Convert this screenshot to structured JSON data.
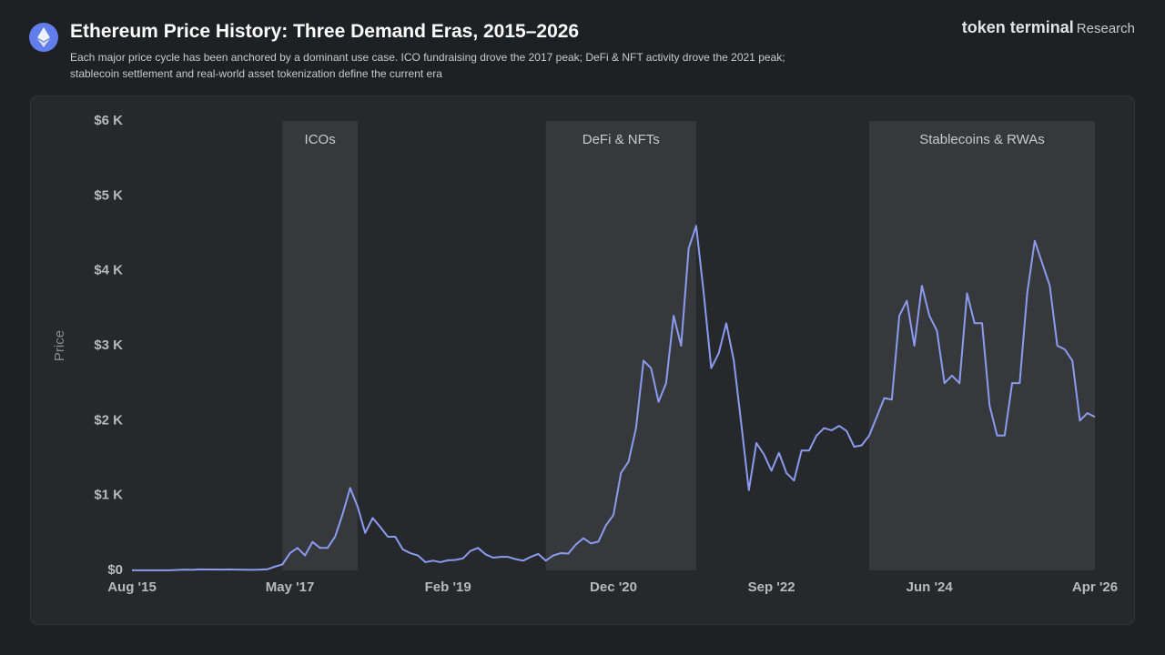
{
  "chart_data": {
    "type": "line",
    "title": "Ethereum Price History: Three Demand Eras, 2015–2026",
    "subtitle": "Each major price cycle has been anchored by a dominant use case. ICO fundraising drove the 2017 peak; DeFi & NFT activity drove the 2021 peak; stablecoin settlement and real-world asset tokenization define the current era",
    "brand": "token terminal",
    "brand_suffix": "Research",
    "y_label": "Price",
    "color": "#8b9cf0",
    "grid": false,
    "x": [
      "2015-08",
      "2015-09",
      "2015-10",
      "2015-11",
      "2015-12",
      "2016-01",
      "2016-02",
      "2016-03",
      "2016-04",
      "2016-05",
      "2016-06",
      "2016-07",
      "2016-08",
      "2016-09",
      "2016-10",
      "2016-11",
      "2016-12",
      "2017-01",
      "2017-02",
      "2017-03",
      "2017-04",
      "2017-05",
      "2017-06",
      "2017-07",
      "2017-08",
      "2017-09",
      "2017-10",
      "2017-11",
      "2017-12",
      "2018-01",
      "2018-02",
      "2018-03",
      "2018-04",
      "2018-05",
      "2018-06",
      "2018-07",
      "2018-08",
      "2018-09",
      "2018-10",
      "2018-11",
      "2018-12",
      "2019-01",
      "2019-02",
      "2019-03",
      "2019-04",
      "2019-05",
      "2019-06",
      "2019-07",
      "2019-08",
      "2019-09",
      "2019-10",
      "2019-11",
      "2019-12",
      "2020-01",
      "2020-02",
      "2020-03",
      "2020-04",
      "2020-05",
      "2020-06",
      "2020-07",
      "2020-08",
      "2020-09",
      "2020-10",
      "2020-11",
      "2020-12",
      "2021-01",
      "2021-02",
      "2021-03",
      "2021-04",
      "2021-05",
      "2021-06",
      "2021-07",
      "2021-08",
      "2021-09",
      "2021-10",
      "2021-11",
      "2021-12",
      "2022-01",
      "2022-02",
      "2022-03",
      "2022-04",
      "2022-05",
      "2022-06",
      "2022-07",
      "2022-08",
      "2022-09",
      "2022-10",
      "2022-11",
      "2022-12",
      "2023-01",
      "2023-02",
      "2023-03",
      "2023-04",
      "2023-05",
      "2023-06",
      "2023-07",
      "2023-08",
      "2023-09",
      "2023-10",
      "2023-11",
      "2023-12",
      "2024-01",
      "2024-02",
      "2024-03",
      "2024-04",
      "2024-05",
      "2024-06",
      "2024-07",
      "2024-08",
      "2024-09",
      "2024-10",
      "2024-11",
      "2024-12",
      "2025-01",
      "2025-02",
      "2025-03",
      "2025-04",
      "2025-05",
      "2025-06",
      "2025-07",
      "2025-08",
      "2025-09",
      "2025-10",
      "2025-11",
      "2025-12",
      "2026-01",
      "2026-02",
      "2026-03",
      "2026-04"
    ],
    "values": [
      1,
      1,
      0.9,
      0.9,
      0.9,
      2,
      6,
      11,
      8,
      13,
      12,
      12,
      11,
      13,
      11,
      9,
      8,
      10,
      15,
      50,
      80,
      230,
      300,
      200,
      380,
      300,
      300,
      450,
      750,
      1100,
      850,
      500,
      700,
      580,
      450,
      450,
      280,
      230,
      200,
      110,
      130,
      110,
      135,
      140,
      160,
      260,
      300,
      215,
      170,
      180,
      180,
      150,
      130,
      180,
      220,
      130,
      200,
      230,
      225,
      345,
      430,
      360,
      385,
      600,
      740,
      1300,
      1450,
      1900,
      2800,
      2700,
      2250,
      2500,
      3400,
      3000,
      4300,
      4600,
      3700,
      2700,
      2900,
      3300,
      2800,
      1950,
      1070,
      1700,
      1550,
      1330,
      1570,
      1300,
      1200,
      1600,
      1600,
      1800,
      1900,
      1870,
      1930,
      1860,
      1650,
      1670,
      1800,
      2050,
      2300,
      2280,
      3400,
      3600,
      3000,
      3800,
      3400,
      3200,
      2500,
      2600,
      2500,
      3700,
      3300,
      3300,
      2200,
      1800,
      1800,
      2500,
      2500,
      3700,
      4400,
      4100,
      3800,
      3000,
      2950,
      2800,
      2000,
      2100,
      2050
    ],
    "xlim": [
      "2015-08",
      "2026-04"
    ],
    "xticks": [
      {
        "value": "2015-08",
        "label": "Aug '15"
      },
      {
        "value": "2017-05",
        "label": "May '17"
      },
      {
        "value": "2019-02",
        "label": "Feb '19"
      },
      {
        "value": "2020-12",
        "label": "Dec '20"
      },
      {
        "value": "2022-09",
        "label": "Sep '22"
      },
      {
        "value": "2024-06",
        "label": "Jun '24"
      },
      {
        "value": "2026-04",
        "label": "Apr '26"
      }
    ],
    "ylim": [
      0,
      6000
    ],
    "yticks": [
      {
        "value": 0,
        "label": "$0"
      },
      {
        "value": 1000,
        "label": "$1 K"
      },
      {
        "value": 2000,
        "label": "$2 K"
      },
      {
        "value": 3000,
        "label": "$3 K"
      },
      {
        "value": 4000,
        "label": "$4 K"
      },
      {
        "value": 5000,
        "label": "$5 K"
      },
      {
        "value": 6000,
        "label": "$6 K"
      }
    ],
    "eras": [
      {
        "label": "ICOs",
        "start": "2017-04",
        "end": "2018-02"
      },
      {
        "label": "DeFi & NFTs",
        "start": "2020-03",
        "end": "2021-11"
      },
      {
        "label": "Stablecoins & RWAs",
        "start": "2023-10",
        "end": "2026-04"
      }
    ]
  }
}
